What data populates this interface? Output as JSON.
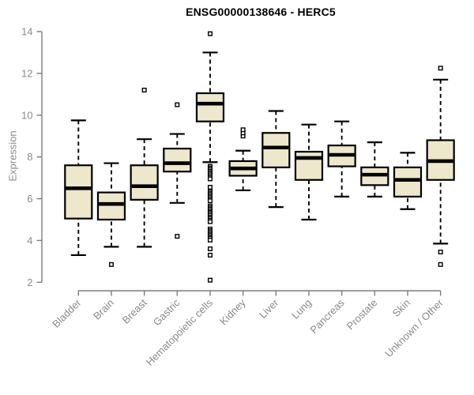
{
  "chart_data": {
    "type": "boxplot",
    "title": "ENSG00000138646 - HERC5",
    "xlabel": "",
    "ylabel": "Expression",
    "ylim": [
      2,
      14
    ],
    "yticks": [
      2,
      4,
      6,
      8,
      10,
      12,
      14
    ],
    "grid": false,
    "legend": false,
    "categories": [
      "Bladder",
      "Brain",
      "Breast",
      "Gastric",
      "Hematopoietic cells",
      "Kidney",
      "Liver",
      "Lung",
      "Pancreas",
      "Prostate",
      "Skin",
      "Unknown / Other"
    ],
    "boxes": [
      {
        "category": "Bladder",
        "low": 3.3,
        "q1": 5.05,
        "median": 6.5,
        "q3": 7.6,
        "high": 9.75,
        "outliers": []
      },
      {
        "category": "Brain",
        "low": 3.7,
        "q1": 5.0,
        "median": 5.75,
        "q3": 6.3,
        "high": 7.7,
        "outliers": [
          2.85
        ]
      },
      {
        "category": "Breast",
        "low": 3.7,
        "q1": 5.95,
        "median": 6.6,
        "q3": 7.6,
        "high": 8.85,
        "outliers": [
          11.2
        ]
      },
      {
        "category": "Gastric",
        "low": 5.8,
        "q1": 7.3,
        "median": 7.7,
        "q3": 8.4,
        "high": 9.1,
        "outliers": [
          10.5,
          4.2
        ]
      },
      {
        "category": "Hematopoietic cells",
        "low": 7.75,
        "q1": 9.7,
        "median": 10.55,
        "q3": 11.05,
        "high": 13.0,
        "outliers": [
          13.9,
          7.55,
          7.47,
          7.4,
          7.32,
          7.25,
          7.18,
          7.1,
          7.02,
          6.95,
          6.55,
          6.35,
          6.27,
          6.2,
          6.12,
          6.05,
          5.97,
          5.9,
          5.65,
          5.57,
          5.5,
          5.42,
          5.35,
          5.28,
          5.2,
          5.12,
          5.05,
          4.97,
          4.9,
          4.55,
          4.47,
          4.4,
          4.32,
          4.25,
          4.17,
          4.1,
          4.02,
          3.6,
          3.3,
          2.1
        ]
      },
      {
        "category": "Kidney",
        "low": 6.4,
        "q1": 7.1,
        "median": 7.45,
        "q3": 7.8,
        "high": 8.3,
        "outliers": [
          9.0,
          9.15,
          9.3
        ]
      },
      {
        "category": "Liver",
        "low": 5.6,
        "q1": 7.5,
        "median": 8.45,
        "q3": 9.15,
        "high": 10.2,
        "outliers": []
      },
      {
        "category": "Lung",
        "low": 5.0,
        "q1": 6.9,
        "median": 7.95,
        "q3": 8.25,
        "high": 9.55,
        "outliers": []
      },
      {
        "category": "Pancreas",
        "low": 6.1,
        "q1": 7.55,
        "median": 8.1,
        "q3": 8.55,
        "high": 9.7,
        "outliers": []
      },
      {
        "category": "Prostate",
        "low": 6.1,
        "q1": 6.65,
        "median": 7.15,
        "q3": 7.5,
        "high": 8.7,
        "outliers": []
      },
      {
        "category": "Skin",
        "low": 5.5,
        "q1": 6.1,
        "median": 6.9,
        "q3": 7.5,
        "high": 8.2,
        "outliers": []
      },
      {
        "category": "Unknown / Other",
        "low": 3.85,
        "q1": 6.9,
        "median": 7.8,
        "q3": 8.8,
        "high": 11.7,
        "outliers": [
          12.25,
          3.45,
          2.85
        ]
      }
    ],
    "style": {
      "box_fill": "#EDE7CB",
      "box_stroke": "#000000",
      "median_color": "#000000",
      "whisker_color": "#000000",
      "outlier_stroke": "#000000",
      "outlier_fill": "#ffffff",
      "axis_color": "#7d7d7d",
      "tick_label_color": "#8a8a8a",
      "title_color": "#000000"
    }
  }
}
